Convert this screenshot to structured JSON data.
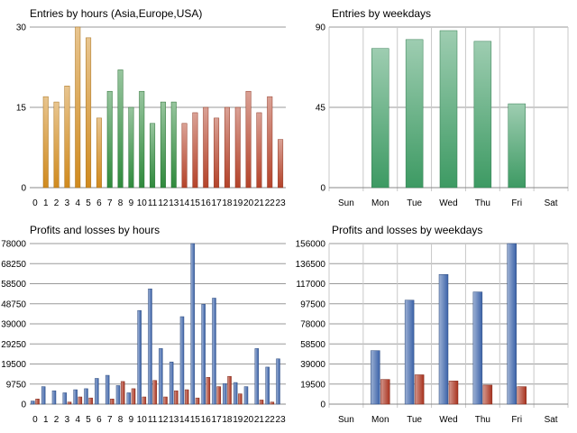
{
  "colors": {
    "asia_orange": "#d08a1e",
    "europe_green": "#2f8a3c",
    "usa_red": "#b4432a",
    "weekday_green": "#3d9a63",
    "profit_blue": "#3b62a8",
    "loss_red": "#a8321e",
    "grid": "#9a9a9a"
  },
  "chart_data": [
    {
      "id": "hours",
      "type": "bar",
      "title": "Entries by hours (Asia,Europe,USA)",
      "categories": [
        "0",
        "1",
        "2",
        "3",
        "4",
        "5",
        "6",
        "7",
        "8",
        "9",
        "10",
        "11",
        "12",
        "13",
        "14",
        "15",
        "16",
        "17",
        "18",
        "19",
        "20",
        "21",
        "22",
        "23"
      ],
      "values": [
        0,
        17,
        16,
        19,
        30,
        28,
        13,
        18,
        22,
        15,
        18,
        12,
        16,
        16,
        12,
        14,
        15,
        13,
        15,
        15,
        18,
        14,
        17,
        9
      ],
      "region_by_hour": [
        "asia",
        "asia",
        "asia",
        "asia",
        "asia",
        "asia",
        "asia",
        "europe",
        "europe",
        "europe",
        "europe",
        "europe",
        "europe",
        "europe",
        "usa",
        "usa",
        "usa",
        "usa",
        "usa",
        "usa",
        "usa",
        "usa",
        "usa",
        "usa"
      ],
      "yticks": [
        "0",
        "15",
        "30"
      ],
      "ylim": [
        0,
        30
      ],
      "grid": true
    },
    {
      "id": "weekdays",
      "type": "bar",
      "title": "Entries by weekdays",
      "categories": [
        "Sun",
        "Mon",
        "Tue",
        "Wed",
        "Thu",
        "Fri",
        "Sat"
      ],
      "values": [
        0,
        78,
        83,
        88,
        82,
        47,
        0
      ],
      "yticks": [
        "0",
        "45",
        "90"
      ],
      "ylim": [
        0,
        90
      ],
      "grid": true
    },
    {
      "id": "pl_hours",
      "type": "bar",
      "title": "Profits and losses by hours",
      "categories": [
        "0",
        "1",
        "2",
        "3",
        "4",
        "5",
        "6",
        "7",
        "8",
        "9",
        "10",
        "11",
        "12",
        "13",
        "14",
        "15",
        "16",
        "17",
        "18",
        "19",
        "20",
        "21",
        "22",
        "23"
      ],
      "series": [
        {
          "name": "Profits",
          "values": [
            1500,
            8500,
            6500,
            5500,
            7000,
            7500,
            12500,
            14000,
            9000,
            5500,
            45500,
            56000,
            27000,
            20500,
            42500,
            78000,
            48500,
            51500,
            10000,
            10500,
            8500,
            27000,
            18000,
            22000
          ]
        },
        {
          "name": "Losses",
          "values": [
            2500,
            0,
            0,
            1000,
            3500,
            3000,
            0,
            2500,
            11000,
            7500,
            3500,
            11500,
            3500,
            6500,
            7000,
            3000,
            13000,
            8500,
            13500,
            5000,
            0,
            2000,
            1000,
            0
          ]
        }
      ],
      "yticks": [
        "0",
        "9750",
        "19500",
        "29250",
        "39000",
        "48750",
        "58500",
        "68250",
        "78000"
      ],
      "ylim": [
        0,
        78000
      ],
      "grid": true
    },
    {
      "id": "pl_weekdays",
      "type": "bar",
      "title": "Profits and losses by weekdays",
      "categories": [
        "Sun",
        "Mon",
        "Tue",
        "Wed",
        "Thu",
        "Fri",
        "Sat"
      ],
      "series": [
        {
          "name": "Profits",
          "values": [
            0,
            52000,
            101000,
            126000,
            109000,
            156000,
            0
          ]
        },
        {
          "name": "Losses",
          "values": [
            0,
            24000,
            28500,
            22500,
            18500,
            17000,
            0
          ]
        }
      ],
      "yticks": [
        "0",
        "19500",
        "39000",
        "58500",
        "78000",
        "97500",
        "117000",
        "136500",
        "156000"
      ],
      "ylim": [
        0,
        156000
      ],
      "grid": true
    }
  ]
}
